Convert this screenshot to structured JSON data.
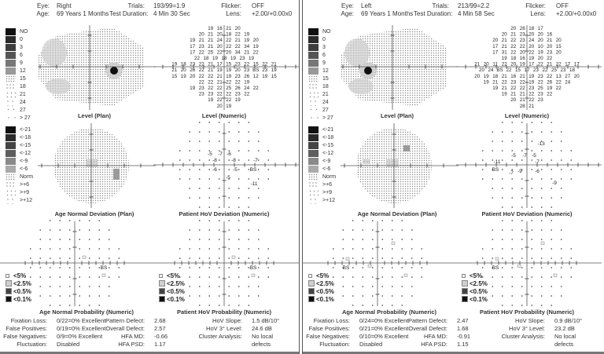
{
  "colors": {
    "axis": "#555555",
    "text": "#333333",
    "plan_fill": "#cfcfcf",
    "defect_dark": "#111111",
    "divider": "#555555"
  },
  "panels": [
    {
      "id": "right",
      "header": {
        "eye_label": "Eye:",
        "eye": "Right",
        "age_label": "Age:",
        "age": "69 Years 1 Months",
        "trials_label": "Trials:",
        "trials": "193/99=1.9",
        "duration_label": "Test Duration:",
        "duration": "4 Min 30 Sec",
        "flicker_label": "Flicker:",
        "flicker": "OFF",
        "lens_label": "Lens:",
        "lens": "+2.00/+0.00x0"
      },
      "titles": {
        "level_plan": "Level (Plan)",
        "level_numeric": "Level (Numeric)",
        "age_dev_plan": "Age Normal Deviation (Plan)",
        "hov_dev_numeric": "Patient HoV Deviation (Numeric)",
        "age_prob_numeric": "Age Normal Probability (Numeric)",
        "hov_prob_numeric": "Patient HoV Probability (Numeric)"
      },
      "stats": {
        "fixation_loss_label": "Fixation Loss:",
        "fixation_loss": "0/22=0% Excellent",
        "false_pos_label": "False Positives:",
        "false_pos": "0/19=0% Excellent",
        "false_neg_label": "False Negatives:",
        "false_neg": "0/9=0% Excellent",
        "fluctuation_label": "Fluctuation:",
        "fluctuation": "Disabled",
        "pattern_defect_label": "Pattern Defect:",
        "pattern_defect": "2.68",
        "overall_defect_label": "Overall Defect:",
        "overall_defect": "2.57",
        "hfa_md_label": "HFA MD:",
        "hfa_md": "-0.66",
        "hfa_psd_label": "HFA PSD:",
        "hfa_psd": "1.17",
        "hov_slope_label": "HoV Slope:",
        "hov_slope": "1.5 dB/10°",
        "hov_level_label": "HoV 3° Level:",
        "hov_level": "24.6 dB",
        "cluster_label": "Cluster Analysis:",
        "cluster_line1": "No local",
        "cluster_line2": "defects"
      },
      "level_numeric_rows": [
        [
          "19",
          "16",
          "21",
          "20"
        ],
        [
          "20",
          "21",
          "20",
          "18",
          "22",
          "19"
        ],
        [
          "19",
          "21",
          "21",
          "24",
          "22",
          "21",
          "19",
          "20"
        ],
        [
          "17",
          "23",
          "21",
          "20",
          "22",
          "22",
          "34",
          "19"
        ],
        [
          "17",
          "22",
          "25",
          "22",
          "20",
          "34",
          "21",
          "22"
        ],
        [
          "22",
          "18",
          "19",
          "18",
          "19",
          "23",
          "19"
        ],
        [
          "19",
          "18",
          "23",
          "22",
          "21",
          "17",
          "15",
          "23",
          "22",
          "15",
          "22",
          "21"
        ],
        [
          "21",
          "20",
          "26",
          "22",
          "21",
          "19",
          "19",
          "20",
          "23",
          "BS",
          "23",
          "19"
        ],
        [
          "15",
          "19",
          "20",
          "22",
          "22",
          "21",
          "19",
          "23",
          "26",
          "12",
          "19",
          "15"
        ],
        [
          "22",
          "22",
          "21",
          "22",
          "22",
          "19"
        ],
        [
          "19",
          "23",
          "22",
          "22",
          "25",
          "26",
          "24",
          "22"
        ],
        [
          "23",
          "23",
          "22",
          "22",
          "23",
          "22"
        ],
        [
          "19",
          "22",
          "22",
          "19"
        ],
        [
          "20",
          "19"
        ]
      ],
      "hov_deviation_labels": [
        "-5",
        "-7",
        "-6",
        "-8",
        "-8",
        "-7",
        "-6",
        "-5",
        "BS",
        "-5",
        "-11"
      ]
    },
    {
      "id": "left",
      "header": {
        "eye_label": "Eye:",
        "eye": "Left",
        "age_label": "Age:",
        "age": "69 Years 1 Months",
        "trials_label": "Trials:",
        "trials": "213/99=2.2",
        "duration_label": "Test Duration:",
        "duration": "4 Min 58 Sec",
        "flicker_label": "Flicker:",
        "flicker": "OFF",
        "lens_label": "Lens:",
        "lens": "+2.00/+0.00x0"
      },
      "titles": {
        "level_plan": "Level (Plan)",
        "level_numeric": "Level (Numeric)",
        "age_dev_plan": "Age Normal Deviation (Plan)",
        "hov_dev_numeric": "Patient HoV Deviation (Numeric)",
        "age_prob_numeric": "Age Normal Probability (Numeric)",
        "hov_prob_numeric": "Patient HoV Probability (Numeric)"
      },
      "stats": {
        "fixation_loss_label": "Fixation Loss:",
        "fixation_loss": "0/24=0% Excellent",
        "false_pos_label": "False Positives:",
        "false_pos": "0/21=0% Excellent",
        "false_neg_label": "False Negatives:",
        "false_neg": "0/10=0% Excellent",
        "fluctuation_label": "Fluctuation:",
        "fluctuation": "Disabled",
        "pattern_defect_label": "Pattern Defect:",
        "pattern_defect": "2.47",
        "overall_defect_label": "Overall Defect:",
        "overall_defect": "1.68",
        "hfa_md_label": "HFA MD:",
        "hfa_md": "-0.91",
        "hfa_psd_label": "HFA PSD:",
        "hfa_psd": "1.15",
        "hov_slope_label": "HoV Slope:",
        "hov_slope": "0.9 dB/10°",
        "hov_level_label": "HoV 3° Level:",
        "hov_level": "23.2 dB",
        "cluster_label": "Cluster Analysis:",
        "cluster_line1": "No local",
        "cluster_line2": "defects"
      },
      "level_numeric_rows": [
        [
          "20",
          "28",
          "18",
          "17"
        ],
        [
          "20",
          "21",
          "23",
          "20",
          "20",
          "16"
        ],
        [
          "20",
          "21",
          "22",
          "23",
          "24",
          "20",
          "21",
          "20"
        ],
        [
          "17",
          "21",
          "22",
          "22",
          "20",
          "10",
          "20",
          "15"
        ],
        [
          "17",
          "31",
          "22",
          "20",
          "22",
          "19",
          "23",
          "20"
        ],
        [
          "19",
          "18",
          "16",
          "19",
          "20",
          "22"
        ],
        [
          "21",
          "20",
          "11",
          "22",
          "20",
          "19",
          "17",
          "22",
          "21",
          "22",
          "17",
          "17"
        ],
        [
          "20",
          "24",
          "BS",
          "22",
          "15",
          "17",
          "23",
          "22",
          "25",
          "23",
          "18"
        ],
        [
          "20",
          "19",
          "18",
          "21",
          "16",
          "21",
          "19",
          "23",
          "22",
          "13",
          "27",
          "20"
        ],
        [
          "19",
          "21",
          "22",
          "23",
          "22",
          "19",
          "22",
          "26",
          "22",
          "24"
        ],
        [
          "19",
          "21",
          "22",
          "22",
          "23",
          "25",
          "19",
          "22"
        ],
        [
          "19",
          "21",
          "21",
          "22",
          "23",
          "22"
        ],
        [
          "20",
          "21",
          "22",
          "23"
        ],
        [
          "28",
          "21"
        ]
      ],
      "hov_deviation_labels": [
        "-13",
        "-5",
        "-7",
        "-5",
        "-11",
        "-7",
        "BS",
        "-7",
        "-9",
        "-6",
        "-9"
      ]
    }
  ],
  "legends": {
    "level": [
      "NO",
      "0",
      "3",
      "6",
      "9",
      "12",
      "15",
      "18",
      "21",
      "24",
      "27",
      "> 27"
    ],
    "deviation": [
      "<-21",
      "<-18",
      "<-15",
      "<-12",
      "<-9",
      "<-6",
      "Norm",
      ">+6",
      ">+9",
      ">+12"
    ],
    "probability": [
      "<5%",
      "<2.5%",
      "<0.5%",
      "<0.1%"
    ]
  },
  "icons": {
    "axis_tick": "tick-mark",
    "blind_spot": "BS"
  }
}
